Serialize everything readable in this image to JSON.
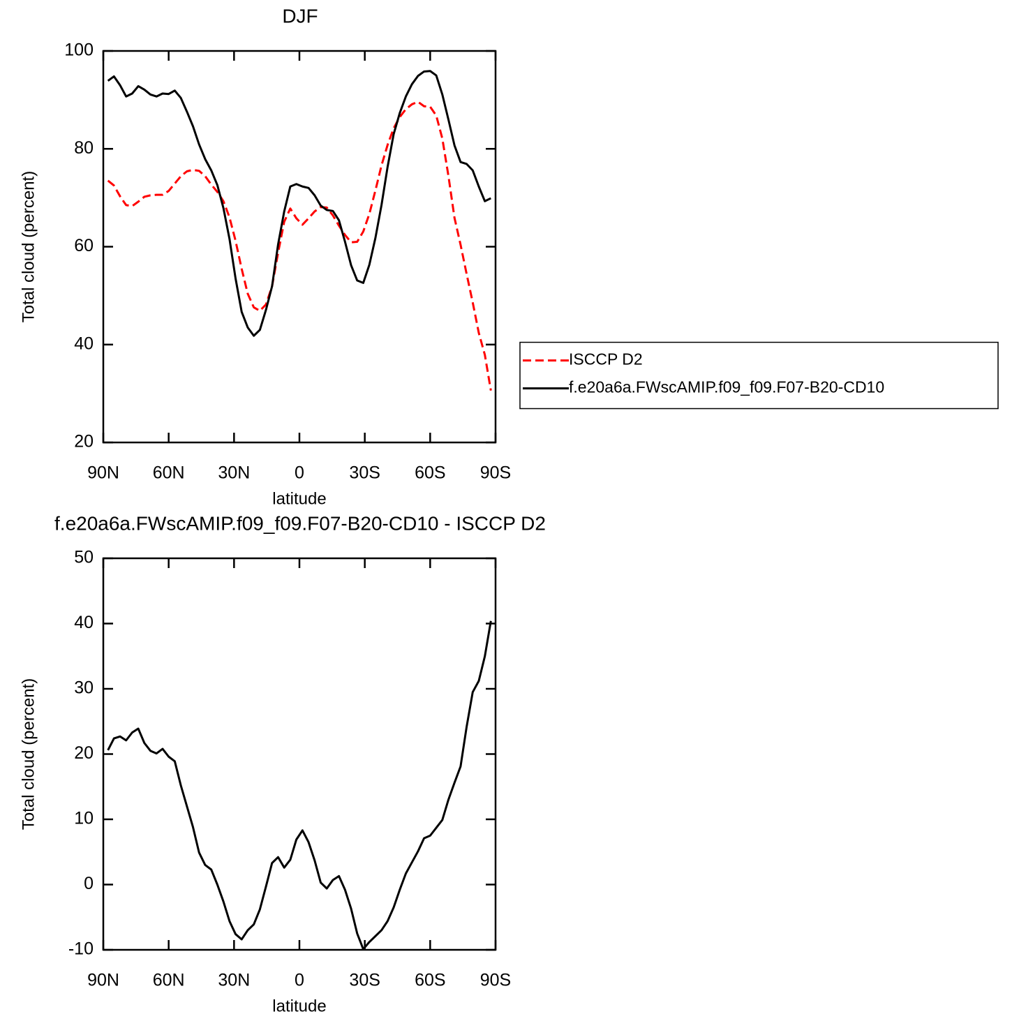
{
  "chart_data": [
    {
      "type": "line",
      "title": "DJF",
      "xlabel": "latitude",
      "ylabel": "Total cloud (percent)",
      "x": [
        87.86,
        85.1,
        82.31,
        79.53,
        76.74,
        73.95,
        71.16,
        68.37,
        65.58,
        62.79,
        60.0,
        57.21,
        54.42,
        51.63,
        48.84,
        46.04,
        43.25,
        40.46,
        37.67,
        34.88,
        32.09,
        29.3,
        26.51,
        23.72,
        20.93,
        18.14,
        15.35,
        12.56,
        9.77,
        6.98,
        4.19,
        1.4,
        -1.4,
        -4.19,
        -6.98,
        -9.77,
        -12.56,
        -15.35,
        -18.14,
        -20.93,
        -23.72,
        -26.51,
        -29.3,
        -32.09,
        -34.88,
        -37.67,
        -40.46,
        -43.25,
        -46.04,
        -48.84,
        -51.63,
        -54.42,
        -57.21,
        -60.0,
        -62.79,
        -65.58,
        -68.37,
        -71.16,
        -73.95,
        -76.74,
        -79.53,
        -82.31,
        -85.1,
        -87.86
      ],
      "series": [
        {
          "name": "ISCCP D2",
          "color": "#ff0000",
          "line_style": "dashed",
          "values": [
            73.5,
            72.5,
            70.3,
            68.5,
            68.3,
            69.2,
            70.2,
            70.5,
            70.6,
            70.6,
            71.4,
            72.9,
            74.4,
            75.4,
            75.7,
            75.5,
            74.4,
            72.7,
            71.2,
            69.3,
            66.0,
            61.2,
            55.5,
            50.4,
            47.6,
            46.9,
            48.2,
            51.9,
            58.8,
            65.1,
            67.8,
            65.8,
            64.5,
            65.8,
            67.2,
            68.1,
            68.0,
            66.4,
            64.3,
            62.4,
            60.9,
            61.0,
            63.1,
            66.7,
            71.5,
            76.6,
            80.8,
            84.2,
            86.5,
            88.1,
            89.1,
            89.6,
            88.7,
            88.6,
            86.8,
            82.1,
            74.5,
            65.9,
            60.4,
            54.4,
            48.6,
            42.4,
            37.9,
            30.6
          ]
        },
        {
          "name": "f.e20a6a.FWscAMIP.f09_f09.F07-B20-CD10",
          "color": "#000000",
          "line_style": "solid",
          "values": [
            93.9,
            94.8,
            93.0,
            90.7,
            91.3,
            92.8,
            92.1,
            91.1,
            90.7,
            91.3,
            91.2,
            91.9,
            90.4,
            87.6,
            84.6,
            80.9,
            77.9,
            75.6,
            72.6,
            67.9,
            61.6,
            53.5,
            46.7,
            43.5,
            41.8,
            43.0,
            47.1,
            51.9,
            60.5,
            67.2,
            72.3,
            72.8,
            72.3,
            72.0,
            70.5,
            68.4,
            67.5,
            67.3,
            65.4,
            61.0,
            56.2,
            53.1,
            52.6,
            56.3,
            61.8,
            68.5,
            76.3,
            83.0,
            87.3,
            90.7,
            93.2,
            94.9,
            95.8,
            95.9,
            95.0,
            91.1,
            86.0,
            80.7,
            77.3,
            76.9,
            75.6,
            72.3,
            69.3,
            69.9
          ]
        }
      ],
      "xlim": [
        90,
        -90
      ],
      "xticks": [
        {
          "value": 90,
          "label": "90N"
        },
        {
          "value": 60,
          "label": "60N"
        },
        {
          "value": 30,
          "label": "30N"
        },
        0,
        {
          "value": -30,
          "label": "30S"
        },
        {
          "value": -60,
          "label": "60S"
        },
        {
          "value": -90,
          "label": "90S"
        }
      ],
      "ylim": [
        20,
        100
      ],
      "yticks": [
        20,
        40,
        60,
        80,
        100
      ],
      "legend_position": "right"
    },
    {
      "type": "line",
      "title": "f.e20a6a.FWscAMIP.f09_f09.F07-B20-CD10 - ISCCP D2",
      "xlabel": "latitude",
      "ylabel": "Total cloud (percent)",
      "x": [
        87.86,
        85.1,
        82.31,
        79.53,
        76.74,
        73.95,
        71.16,
        68.37,
        65.58,
        62.79,
        60.0,
        57.21,
        54.42,
        51.63,
        48.84,
        46.04,
        43.25,
        40.46,
        37.67,
        34.88,
        32.09,
        29.3,
        26.51,
        23.72,
        20.93,
        18.14,
        15.35,
        12.56,
        9.77,
        6.98,
        4.19,
        1.4,
        -1.4,
        -4.19,
        -6.98,
        -9.77,
        -12.56,
        -15.35,
        -18.14,
        -20.93,
        -23.72,
        -26.51,
        -29.3,
        -32.09,
        -34.88,
        -37.67,
        -40.46,
        -43.25,
        -46.04,
        -48.84,
        -51.63,
        -54.42,
        -57.21,
        -60.0,
        -62.79,
        -65.58,
        -68.37,
        -71.16,
        -73.95,
        -76.74,
        -79.53,
        -82.31,
        -85.1,
        -87.86
      ],
      "series": [
        {
          "color": "#000000",
          "line_style": "solid",
          "values": [
            20.6,
            22.4,
            22.7,
            22.1,
            23.3,
            23.9,
            21.7,
            20.5,
            20.1,
            20.8,
            19.6,
            18.9,
            15.2,
            12.0,
            8.8,
            4.9,
            3.0,
            2.3,
            0.0,
            -2.6,
            -5.6,
            -7.6,
            -8.4,
            -7.0,
            -6.1,
            -3.8,
            -0.3,
            3.3,
            4.2,
            2.6,
            3.8,
            6.9,
            8.3,
            6.5,
            3.7,
            0.3,
            -0.6,
            0.7,
            1.3,
            -0.8,
            -3.7,
            -7.5,
            -9.9,
            -8.8,
            -7.9,
            -7.0,
            -5.6,
            -3.5,
            -0.8,
            1.7,
            3.4,
            5.1,
            7.1,
            7.5,
            8.7,
            9.9,
            13.0,
            15.6,
            18.1,
            24.2,
            29.5,
            31.2,
            35.0,
            40.4
          ]
        }
      ],
      "xlim": [
        90,
        -90
      ],
      "xticks": [
        {
          "value": 90,
          "label": "90N"
        },
        {
          "value": 60,
          "label": "60N"
        },
        {
          "value": 30,
          "label": "30N"
        },
        0,
        {
          "value": -30,
          "label": "30S"
        },
        {
          "value": -60,
          "label": "60S"
        },
        {
          "value": -90,
          "label": "90S"
        }
      ],
      "ylim": [
        -10,
        50
      ],
      "yticks": [
        -10,
        0,
        10,
        20,
        30,
        40,
        50
      ]
    }
  ]
}
